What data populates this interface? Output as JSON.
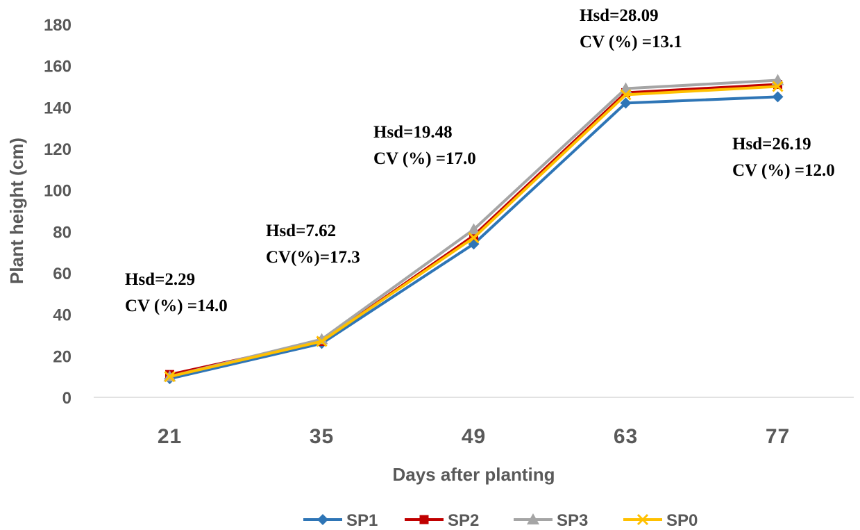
{
  "chart_data": {
    "type": "line",
    "title": "",
    "xlabel": "Days after planting",
    "ylabel": "Plant height (cm)",
    "categories": [
      "21",
      "35",
      "49",
      "63",
      "77"
    ],
    "ylim": [
      0,
      180
    ],
    "yticks": [
      0,
      20,
      40,
      60,
      80,
      100,
      120,
      140,
      160,
      180
    ],
    "grid": false,
    "legend_position": "bottom",
    "series": [
      {
        "name": "SP1",
        "values": [
          9,
          26,
          74,
          142,
          145
        ],
        "color": "#2E75B6",
        "marker": "diamond"
      },
      {
        "name": "SP2",
        "values": [
          11,
          27,
          78,
          147,
          151
        ],
        "color": "#C00000",
        "marker": "square"
      },
      {
        "name": "SP3",
        "values": [
          10,
          28,
          81,
          149,
          153
        ],
        "color": "#A5A5A5",
        "marker": "triangle"
      },
      {
        "name": "SP0",
        "values": [
          10,
          27,
          77,
          146,
          150
        ],
        "color": "#FFC000",
        "marker": "x"
      }
    ],
    "annotations": [
      {
        "category": "21",
        "line1": "Hsd=2.29",
        "line2": "CV (%) =14.0"
      },
      {
        "category": "35",
        "line1": "Hsd=7.62",
        "line2": "CV(%)=17.3"
      },
      {
        "category": "49",
        "line1": "Hsd=19.48",
        "line2": "CV (%) =17.0"
      },
      {
        "category": "63",
        "line1": "Hsd=28.09",
        "line2": "CV (%) =13.1"
      },
      {
        "category": "77",
        "line1": "Hsd=26.19",
        "line2": "CV (%) =12.0"
      }
    ]
  }
}
